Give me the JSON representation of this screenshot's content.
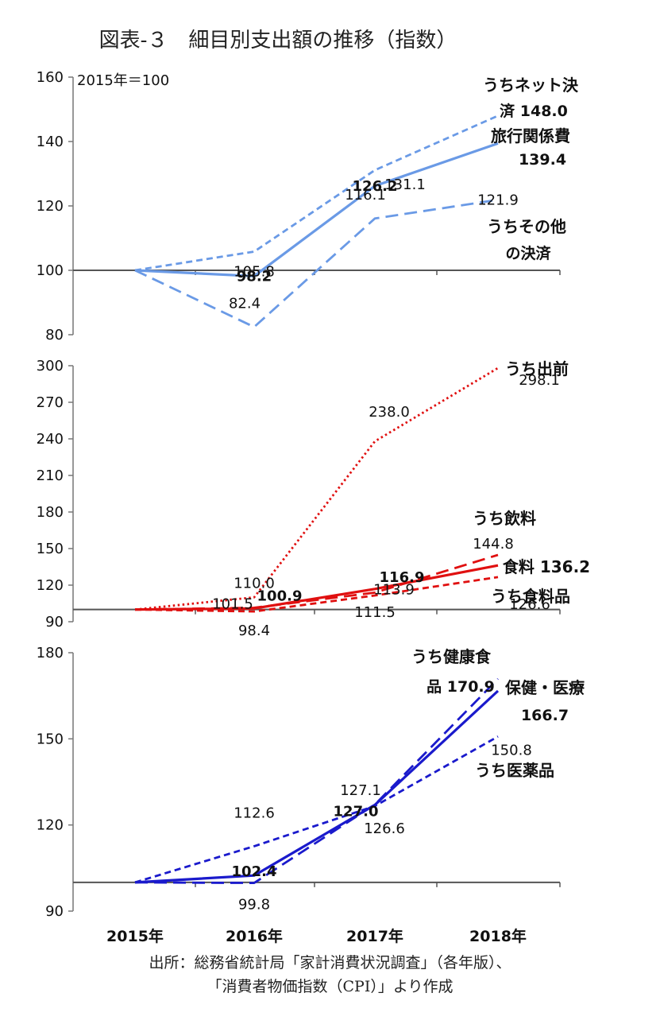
{
  "title": "図表‐３　細目別支出額の推移（指数）",
  "source": {
    "line1": "出所：総務省統計局「家計消費状況調査」（各年版）、",
    "line2": "「消費者物価指数（CPI）」より作成"
  },
  "colors": {
    "top": "#6a9ae6",
    "middle": "#e01010",
    "bottom": "#1a1acc"
  },
  "chart_data": [
    {
      "type": "line",
      "note": "2015年＝100",
      "categories": [
        "2015年",
        "2016年",
        "2017年",
        "2018年"
      ],
      "ylim": [
        80,
        160
      ],
      "yticks": [
        "80",
        "100",
        "120",
        "140",
        "160"
      ],
      "series": [
        {
          "name": "旅行関係費",
          "name2": "139.4",
          "style": "solid",
          "bold": true,
          "values": [
            100,
            98.2,
            126.2,
            139.4
          ],
          "labels": [
            "",
            "98.2",
            "126.2",
            ""
          ]
        },
        {
          "name": "うちネット決",
          "name2": "済 148.0",
          "style": "dashed-short",
          "values": [
            100,
            105.8,
            131.1,
            148.0
          ],
          "labels": [
            "",
            "105.8",
            "131.1",
            ""
          ]
        },
        {
          "name": "うちその他",
          "name2": "の決済",
          "style": "dashed-long",
          "values": [
            100,
            82.4,
            116.1,
            121.9
          ],
          "labels": [
            "",
            "82.4",
            "116.1",
            "121.9"
          ]
        }
      ]
    },
    {
      "type": "line",
      "categories": [
        "2015年",
        "2016年",
        "2017年",
        "2018年"
      ],
      "ylim": [
        90,
        300
      ],
      "yticks": [
        "90",
        "120",
        "150",
        "180",
        "210",
        "240",
        "270",
        "300"
      ],
      "series": [
        {
          "name": "うち出前",
          "style": "dotted",
          "values": [
            100,
            110.0,
            238.0,
            298.1
          ],
          "labels": [
            "",
            "110.0",
            "238.0",
            "298.1"
          ]
        },
        {
          "name": "うち飲料",
          "style": "dashed-long",
          "values": [
            100,
            101.5,
            113.9,
            144.8
          ],
          "labels": [
            "",
            "101.5",
            "113.9",
            "144.8"
          ]
        },
        {
          "name": "食料 136.2",
          "style": "solid",
          "bold": true,
          "values": [
            100,
            100.9,
            116.9,
            136.2
          ],
          "labels": [
            "",
            "100.9",
            "116.9",
            ""
          ]
        },
        {
          "name": "うち食料品",
          "style": "dashed-short",
          "values": [
            100,
            98.4,
            111.5,
            126.6
          ],
          "labels": [
            "",
            "98.4",
            "111.5",
            "126.6"
          ]
        }
      ]
    },
    {
      "type": "line",
      "categories": [
        "2015年",
        "2016年",
        "2017年",
        "2018年"
      ],
      "ylim": [
        90,
        180
      ],
      "yticks": [
        "90",
        "120",
        "150",
        "180"
      ],
      "series": [
        {
          "name": "うち健康食",
          "name2": "品 170.9",
          "style": "dashed-long",
          "values": [
            100,
            99.8,
            127.1,
            170.9
          ],
          "labels": [
            "",
            "99.8",
            "127.1",
            ""
          ]
        },
        {
          "name": "保健・医療",
          "name2": "166.7",
          "style": "solid",
          "bold": true,
          "values": [
            100,
            102.4,
            127.0,
            166.7
          ],
          "labels": [
            "",
            "102.4",
            "127.0",
            ""
          ]
        },
        {
          "name": "うち医薬品",
          "style": "dashed-short",
          "values": [
            100,
            112.6,
            126.6,
            150.8
          ],
          "labels": [
            "",
            "112.6",
            "126.6",
            "150.8"
          ]
        }
      ]
    }
  ]
}
